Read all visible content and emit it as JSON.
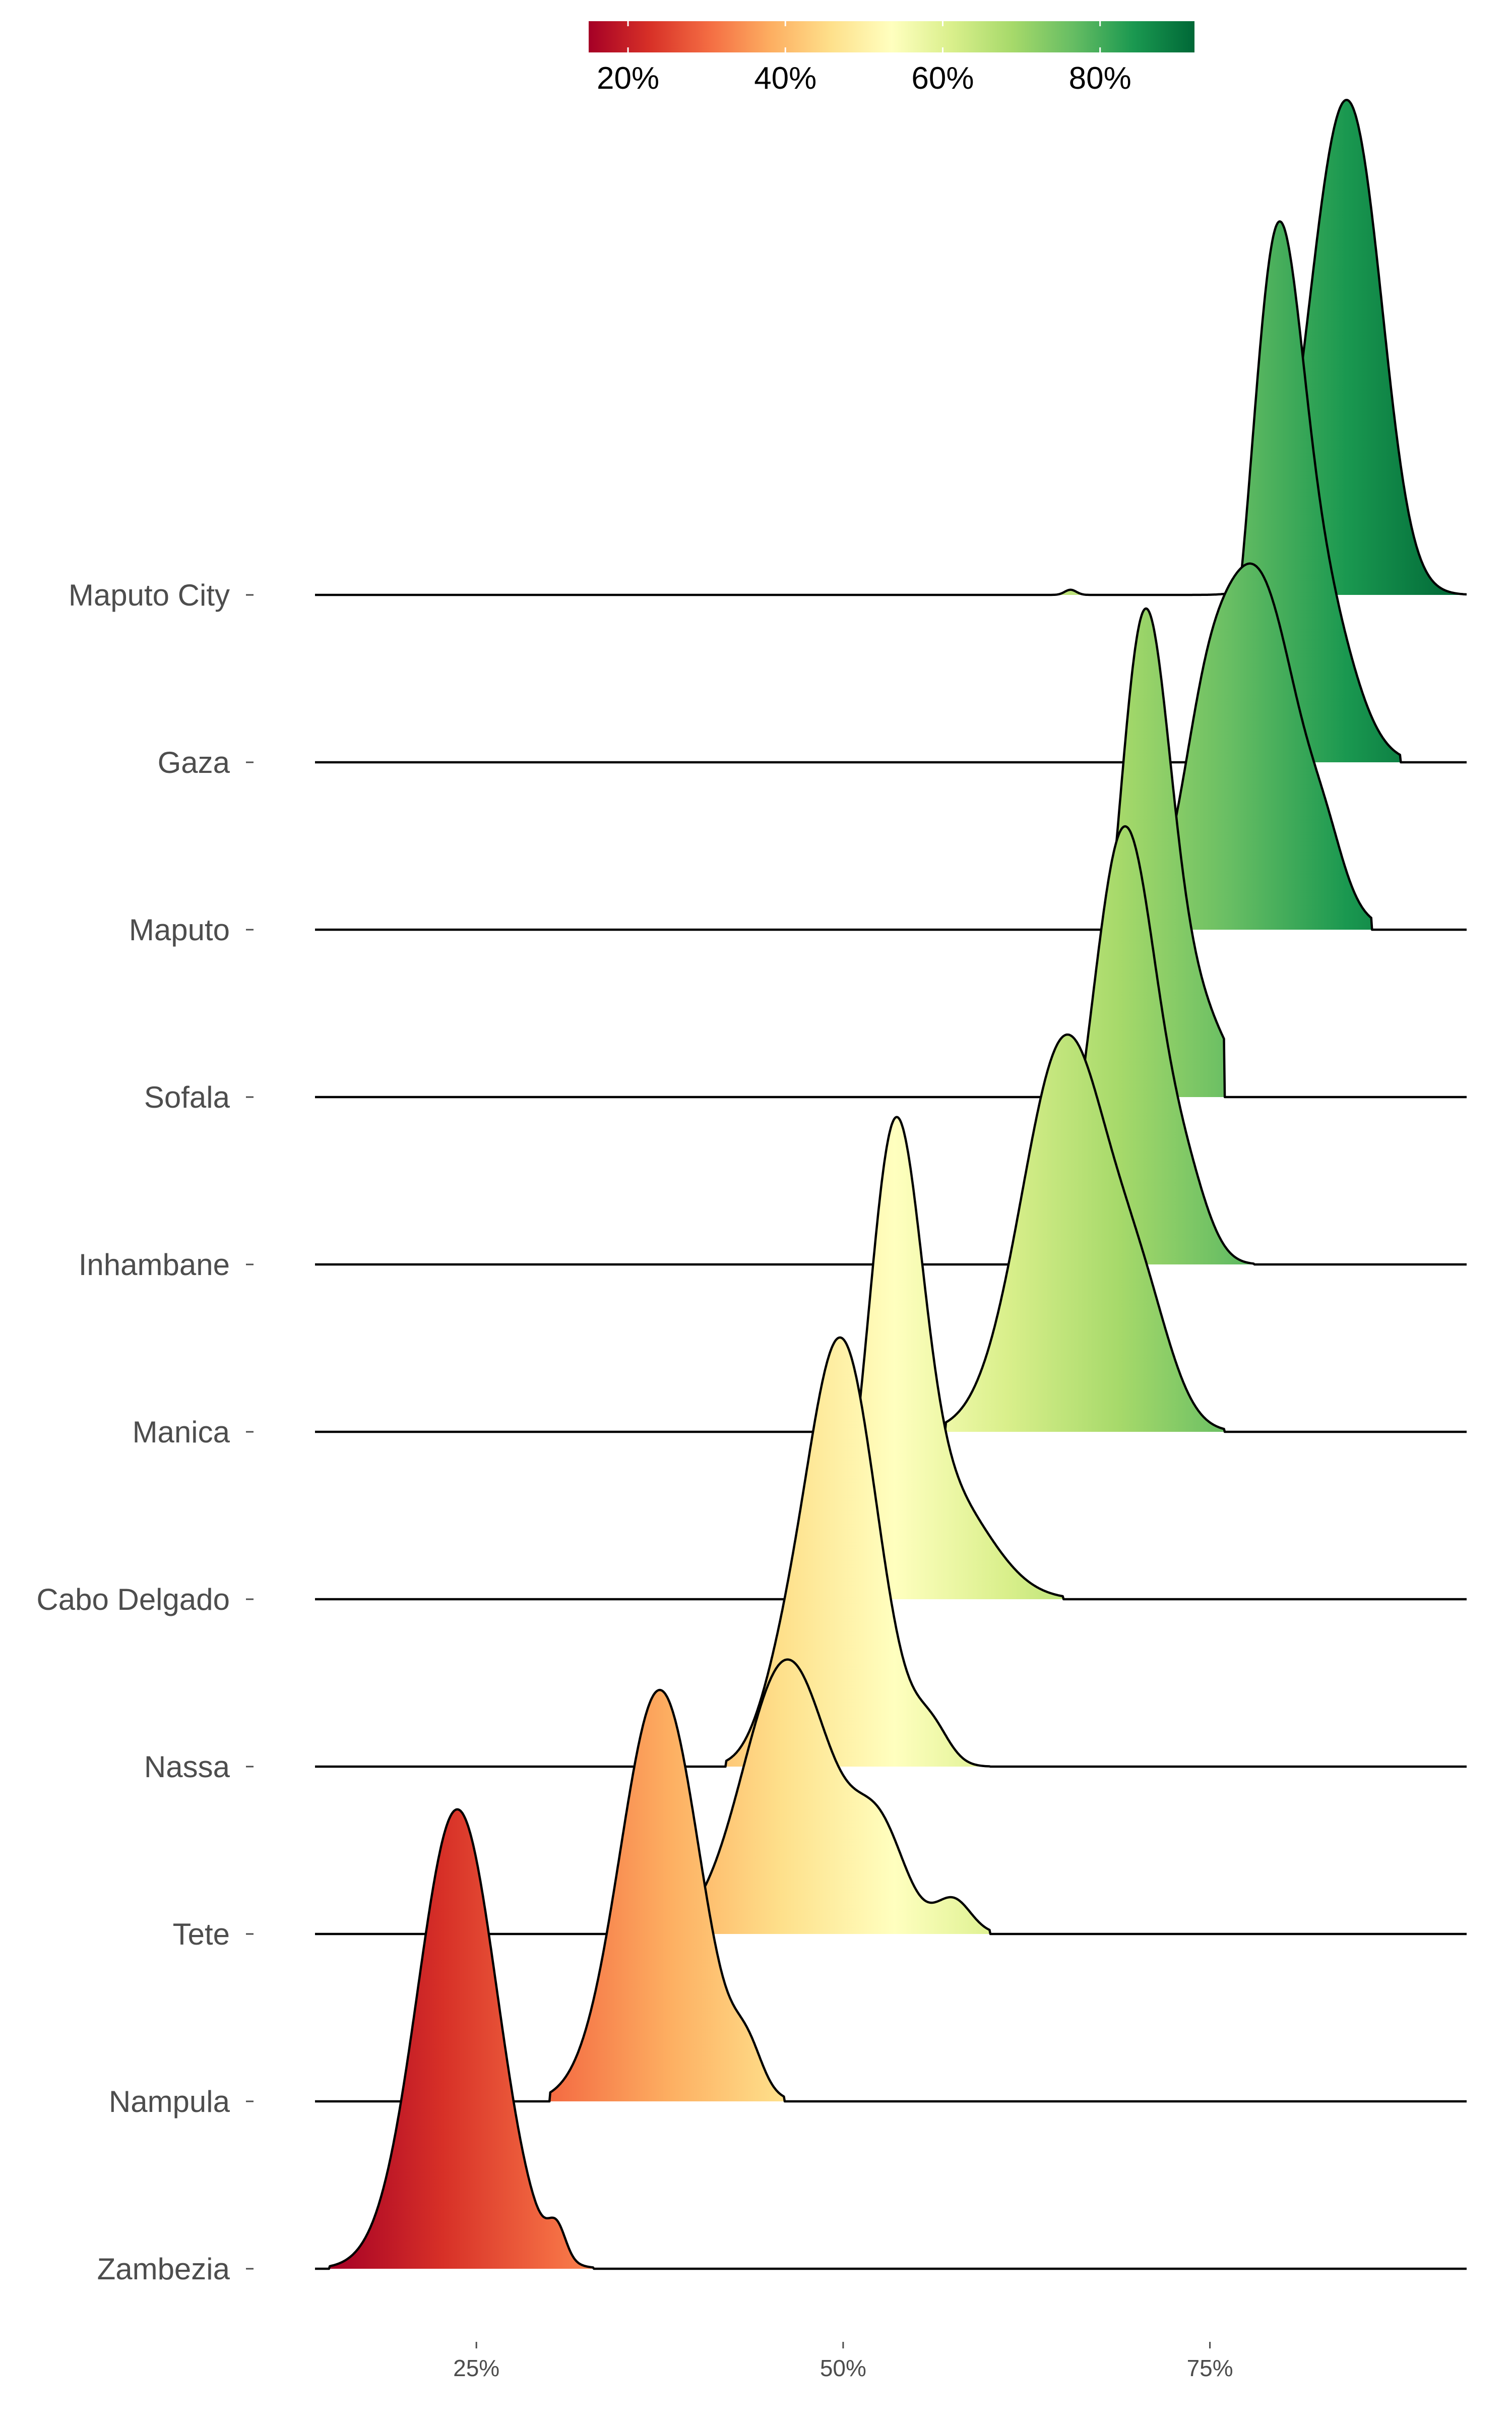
{
  "chart_data": {
    "type": "ridgeline",
    "title": "",
    "xlabel": "",
    "ylabel": "",
    "xlim": [
      0.14,
      0.925
    ],
    "x_ticks": [
      0.25,
      0.5,
      0.75
    ],
    "x_tick_labels": [
      "25%",
      "50%",
      "75%"
    ],
    "colorbar": {
      "palette": "RdYlGn",
      "range": [
        0.15,
        0.92
      ],
      "ticks": [
        0.2,
        0.4,
        0.6,
        0.8
      ],
      "tick_labels": [
        "20%",
        "40%",
        "60%",
        "80%"
      ],
      "colors": [
        "#a50026",
        "#d73027",
        "#f46d43",
        "#fdae61",
        "#fee08b",
        "#ffffbf",
        "#d9ef8b",
        "#a6d96a",
        "#66bd63",
        "#1a9850",
        "#006837"
      ],
      "position": "top"
    },
    "categories": [
      "Zambezia",
      "Nampula",
      "Tete",
      "Nassa",
      "Cabo Delgado",
      "Manica",
      "Inhambane",
      "Sofala",
      "Maputo",
      "Gaza",
      "Maputo City"
    ],
    "series": [
      {
        "label": "Zambezia",
        "peaks": [
          {
            "mu": 0.237,
            "sd": 0.027,
            "h": 2.68
          },
          {
            "mu": 0.305,
            "sd": 0.006,
            "h": 0.17
          }
        ],
        "min": 0.15,
        "max": 0.33
      },
      {
        "label": "Nampula",
        "peaks": [
          {
            "mu": 0.375,
            "sd": 0.027,
            "h": 2.4
          },
          {
            "mu": 0.435,
            "sd": 0.01,
            "h": 0.22
          }
        ],
        "min": 0.3,
        "max": 0.46
      },
      {
        "label": "Tete",
        "peaks": [
          {
            "mu": 0.462,
            "sd": 0.03,
            "h": 1.6
          },
          {
            "mu": 0.525,
            "sd": 0.018,
            "h": 0.55
          },
          {
            "mu": 0.575,
            "sd": 0.012,
            "h": 0.2
          }
        ],
        "min": 0.36,
        "max": 0.6
      },
      {
        "label": "Nassa",
        "peaks": [
          {
            "mu": 0.498,
            "sd": 0.025,
            "h": 2.5
          },
          {
            "mu": 0.455,
            "sd": 0.015,
            "h": 0.2
          },
          {
            "mu": 0.56,
            "sd": 0.012,
            "h": 0.2
          }
        ],
        "min": 0.42,
        "max": 0.6
      },
      {
        "label": "Cabo Delgado",
        "peaks": [
          {
            "mu": 0.535,
            "sd": 0.018,
            "h": 2.5
          },
          {
            "mu": 0.57,
            "sd": 0.03,
            "h": 0.6
          }
        ],
        "min": 0.48,
        "max": 0.65
      },
      {
        "label": "Manica",
        "peaks": [
          {
            "mu": 0.652,
            "sd": 0.03,
            "h": 2.3
          },
          {
            "mu": 0.705,
            "sd": 0.02,
            "h": 0.55
          }
        ],
        "min": 0.57,
        "max": 0.76
      },
      {
        "label": "Inhambane",
        "peaks": [
          {
            "mu": 0.692,
            "sd": 0.022,
            "h": 2.55
          },
          {
            "mu": 0.735,
            "sd": 0.015,
            "h": 0.35
          }
        ],
        "min": 0.62,
        "max": 0.78
      },
      {
        "label": "Sofala",
        "peaks": [
          {
            "mu": 0.705,
            "sd": 0.017,
            "h": 2.65
          },
          {
            "mu": 0.737,
            "sd": 0.022,
            "h": 0.55
          }
        ],
        "min": 0.64,
        "max": 0.76
      },
      {
        "label": "Maputo",
        "peaks": [
          {
            "mu": 0.78,
            "sd": 0.03,
            "h": 2.1
          },
          {
            "mu": 0.745,
            "sd": 0.015,
            "h": 0.45
          },
          {
            "mu": 0.83,
            "sd": 0.012,
            "h": 0.2
          }
        ],
        "min": 0.68,
        "max": 0.86
      },
      {
        "label": "Gaza",
        "peaks": [
          {
            "mu": 0.795,
            "sd": 0.017,
            "h": 2.75
          },
          {
            "mu": 0.825,
            "sd": 0.022,
            "h": 0.95
          }
        ],
        "min": 0.75,
        "max": 0.88
      },
      {
        "label": "Maputo City",
        "peaks": [
          {
            "mu": 0.84,
            "sd": 0.023,
            "h": 2.7
          },
          {
            "mu": 0.86,
            "sd": 0.015,
            "h": 0.4
          },
          {
            "mu": 0.655,
            "sd": 0.004,
            "h": 0.03
          }
        ],
        "min": 0.64,
        "max": 0.925
      }
    ]
  }
}
